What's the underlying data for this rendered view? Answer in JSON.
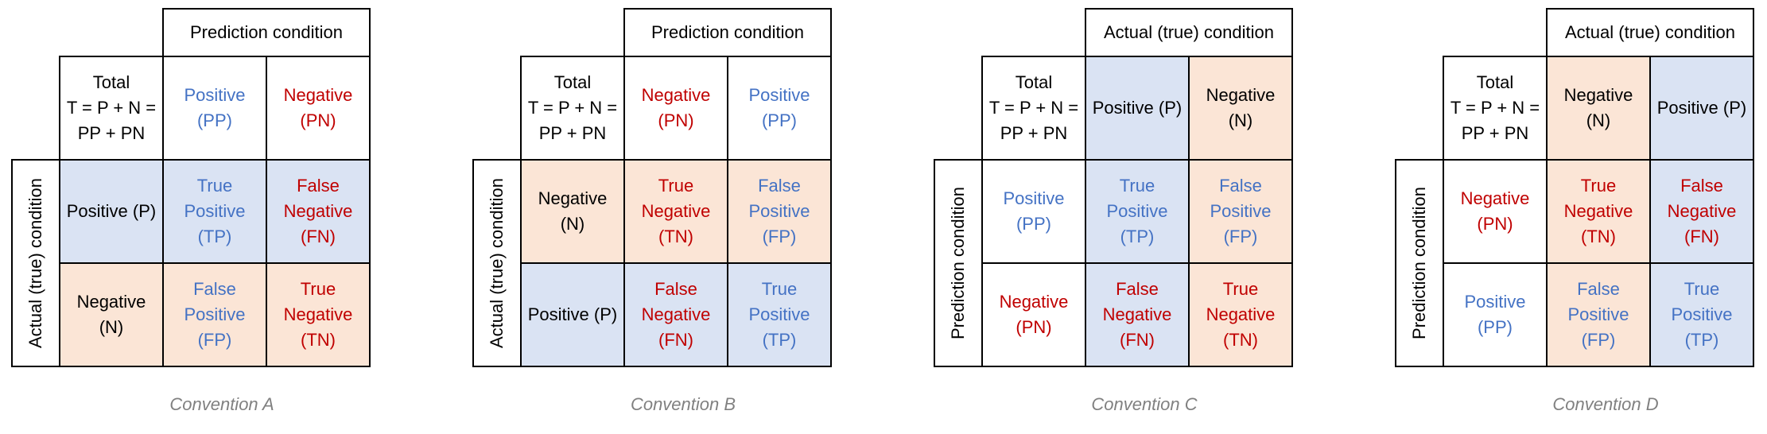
{
  "colors": {
    "positive_text": "#4472c4",
    "negative_text": "#c00000",
    "positive_fill": "#dae3f3",
    "negative_fill": "#fbe5d6",
    "caption_text": "#808080"
  },
  "conventions": [
    {
      "caption": "Convention A",
      "top_header": "Prediction condition",
      "side_header": "Actual (true) condition",
      "corner": "Total\nT = P + N =\nPP + PN",
      "col_headers": [
        {
          "text": "Positive\n(PP)",
          "color": "blue",
          "bg": "white"
        },
        {
          "text": "Negative\n(PN)",
          "color": "red",
          "bg": "white"
        }
      ],
      "row_headers": [
        {
          "text": "Positive (P)",
          "color": "black",
          "bg": "blue"
        },
        {
          "text": "Negative\n(N)",
          "color": "black",
          "bg": "orange"
        }
      ],
      "cells": [
        [
          {
            "text": "True\nPositive\n(TP)",
            "color": "blue",
            "bg": "blue"
          },
          {
            "text": "False\nNegative\n(FN)",
            "color": "red",
            "bg": "blue"
          }
        ],
        [
          {
            "text": "False\nPositive\n(FP)",
            "color": "blue",
            "bg": "orange"
          },
          {
            "text": "True\nNegative\n(TN)",
            "color": "red",
            "bg": "orange"
          }
        ]
      ]
    },
    {
      "caption": "Convention B",
      "top_header": "Prediction condition",
      "side_header": "Actual (true) condition",
      "corner": "Total\nT = P + N =\nPP + PN",
      "col_headers": [
        {
          "text": "Negative\n(PN)",
          "color": "red",
          "bg": "white"
        },
        {
          "text": "Positive\n(PP)",
          "color": "blue",
          "bg": "white"
        }
      ],
      "row_headers": [
        {
          "text": "Negative\n(N)",
          "color": "black",
          "bg": "orange"
        },
        {
          "text": "Positive (P)",
          "color": "black",
          "bg": "blue"
        }
      ],
      "cells": [
        [
          {
            "text": "True\nNegative\n(TN)",
            "color": "red",
            "bg": "orange"
          },
          {
            "text": "False\nPositive\n(FP)",
            "color": "blue",
            "bg": "orange"
          }
        ],
        [
          {
            "text": "False\nNegative\n(FN)",
            "color": "red",
            "bg": "blue"
          },
          {
            "text": "True\nPositive\n(TP)",
            "color": "blue",
            "bg": "blue"
          }
        ]
      ]
    },
    {
      "caption": "Convention C",
      "top_header": "Actual (true) condition",
      "side_header": "Prediction condition",
      "corner": "Total\nT = P + N =\nPP + PN",
      "col_headers": [
        {
          "text": "Positive (P)",
          "color": "black",
          "bg": "blue"
        },
        {
          "text": "Negative\n(N)",
          "color": "black",
          "bg": "orange"
        }
      ],
      "row_headers": [
        {
          "text": "Positive\n(PP)",
          "color": "blue",
          "bg": "white"
        },
        {
          "text": "Negative\n(PN)",
          "color": "red",
          "bg": "white"
        }
      ],
      "cells": [
        [
          {
            "text": "True\nPositive\n(TP)",
            "color": "blue",
            "bg": "blue"
          },
          {
            "text": "False\nPositive\n(FP)",
            "color": "blue",
            "bg": "orange"
          }
        ],
        [
          {
            "text": "False\nNegative\n(FN)",
            "color": "red",
            "bg": "blue"
          },
          {
            "text": "True\nNegative\n(TN)",
            "color": "red",
            "bg": "orange"
          }
        ]
      ]
    },
    {
      "caption": "Convention D",
      "top_header": "Actual (true) condition",
      "side_header": "Prediction condition",
      "corner": "Total\nT = P + N =\nPP + PN",
      "col_headers": [
        {
          "text": "Negative\n(N)",
          "color": "black",
          "bg": "orange"
        },
        {
          "text": "Positive (P)",
          "color": "black",
          "bg": "blue"
        }
      ],
      "row_headers": [
        {
          "text": "Negative\n(PN)",
          "color": "red",
          "bg": "white"
        },
        {
          "text": "Positive\n(PP)",
          "color": "blue",
          "bg": "white"
        }
      ],
      "cells": [
        [
          {
            "text": "True\nNegative\n(TN)",
            "color": "red",
            "bg": "orange"
          },
          {
            "text": "False\nNegative\n(FN)",
            "color": "red",
            "bg": "blue"
          }
        ],
        [
          {
            "text": "False\nPositive\n(FP)",
            "color": "blue",
            "bg": "orange"
          },
          {
            "text": "True\nPositive\n(TP)",
            "color": "blue",
            "bg": "blue"
          }
        ]
      ]
    }
  ]
}
